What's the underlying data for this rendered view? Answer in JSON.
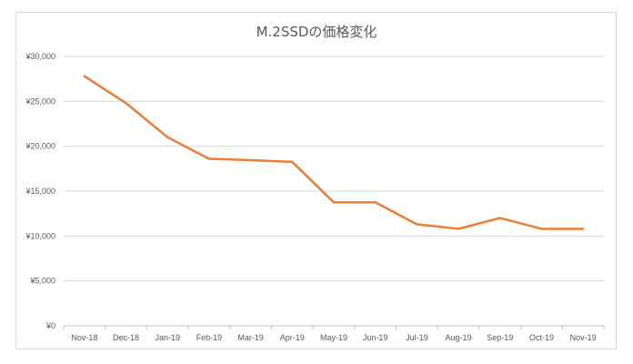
{
  "chart_data": {
    "type": "line",
    "title": "M.2SSDの価格変化",
    "xlabel": "",
    "ylabel": "",
    "categories": [
      "Nov-18",
      "Dec-18",
      "Jan-19",
      "Feb-19",
      "Mar-19",
      "Apr-19",
      "May-19",
      "Jun-19",
      "Jul-19",
      "Aug-19",
      "Sep-19",
      "Oct-19",
      "Nov-19"
    ],
    "series": [
      {
        "color": "#ed7d31",
        "values": [
          27800,
          24800,
          21000,
          18600,
          18450,
          18250,
          13750,
          13750,
          11300,
          10800,
          12000,
          10800,
          10800
        ]
      }
    ],
    "ylim": [
      0,
      30000
    ],
    "yticks": [
      0,
      5000,
      10000,
      15000,
      20000,
      25000,
      30000
    ],
    "ytick_labels": [
      "¥0",
      "¥5,000",
      "¥10,000",
      "¥15,000",
      "¥20,000",
      "¥25,000",
      "¥30,000"
    ],
    "grid": true,
    "legend": "none"
  }
}
